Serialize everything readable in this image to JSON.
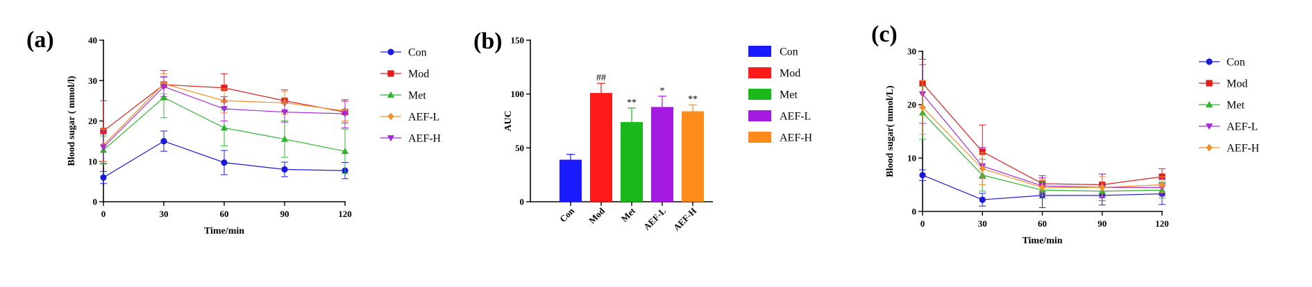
{
  "chart_data": [
    {
      "panel": "(a)",
      "type": "line",
      "xlabel": "Time/min",
      "ylabel": "Blood sugar ( mmol/l)",
      "x": [
        0,
        30,
        60,
        90,
        120
      ],
      "xticks": [
        "0",
        "30",
        "60",
        "90",
        "120"
      ],
      "ylim": [
        0,
        40
      ],
      "yticks": [
        "0",
        "10",
        "20",
        "30",
        "40"
      ],
      "grid": false,
      "legend_position": "right",
      "series": [
        {
          "name": "Con",
          "color": "#1a1adb",
          "marker": "circle",
          "values": [
            6.0,
            15.0,
            9.7,
            8.0,
            7.7
          ],
          "errors": [
            1.5,
            2.5,
            3.0,
            1.8,
            2.0
          ]
        },
        {
          "name": "Mod",
          "color": "#e01c1c",
          "marker": "square",
          "values": [
            17.5,
            29.0,
            28.2,
            25.0,
            22.2
          ],
          "errors": [
            7.5,
            3.5,
            3.5,
            2.7,
            2.7
          ]
        },
        {
          "name": "Met",
          "color": "#2db52d",
          "marker": "triangle-up",
          "values": [
            12.8,
            25.8,
            18.3,
            15.5,
            12.5
          ],
          "errors": [
            3.5,
            5.0,
            4.5,
            4.5,
            5.5
          ]
        },
        {
          "name": "AEF-L",
          "color": "#f0922b",
          "marker": "diamond",
          "values": [
            14.0,
            29.2,
            25.0,
            24.5,
            22.5
          ],
          "errors": [
            4.0,
            2.5,
            3.0,
            2.8,
            2.5
          ]
        },
        {
          "name": "AEF-H",
          "color": "#a52bd6",
          "marker": "triangle-down",
          "values": [
            13.5,
            28.5,
            23.0,
            22.2,
            21.8
          ],
          "errors": [
            4.0,
            2.5,
            3.0,
            2.5,
            3.5
          ]
        }
      ]
    },
    {
      "panel": "(b)",
      "type": "bar",
      "ylabel": "AUC",
      "categories": [
        "Con",
        "Mod",
        "Met",
        "AEF-L",
        "AEF-H"
      ],
      "values": [
        39,
        101,
        74,
        88,
        84
      ],
      "errors": [
        5,
        9,
        13,
        10,
        6
      ],
      "significance": [
        "",
        "##",
        "**",
        "*",
        "**"
      ],
      "colors": [
        "#1a1aff",
        "#ff1a1a",
        "#1ab81a",
        "#a51ae0",
        "#ff8c1a"
      ],
      "ylim": [
        0,
        150
      ],
      "yticks": [
        "0",
        "50",
        "100",
        "150"
      ],
      "grid": false,
      "legend_position": "right",
      "legend": [
        "Con",
        "Mod",
        "Met",
        "AEF-L",
        "AEF-H"
      ]
    },
    {
      "panel": "(c)",
      "type": "line",
      "xlabel": "Time/min",
      "ylabel": "Blood sugar( mmol/L)",
      "x": [
        0,
        30,
        60,
        90,
        120
      ],
      "xticks": [
        "0",
        "30",
        "60",
        "90",
        "120"
      ],
      "ylim": [
        0,
        30
      ],
      "yticks": [
        "0",
        "10",
        "20",
        "30"
      ],
      "grid": false,
      "legend_position": "right",
      "series": [
        {
          "name": "Con",
          "color": "#1a1adb",
          "marker": "circle",
          "values": [
            6.8,
            2.2,
            3.0,
            3.0,
            3.3
          ],
          "errors": [
            1.0,
            1.2,
            2.3,
            1.8,
            2.0
          ]
        },
        {
          "name": "Mod",
          "color": "#e01c1c",
          "marker": "square",
          "values": [
            24.0,
            11.2,
            5.2,
            5.0,
            6.5
          ],
          "errors": [
            4.5,
            5.0,
            1.5,
            2.0,
            1.5
          ]
        },
        {
          "name": "Met",
          "color": "#2db52d",
          "marker": "triangle-up",
          "values": [
            18.5,
            6.8,
            4.0,
            3.8,
            4.0
          ],
          "errors": [
            5.0,
            3.0,
            1.5,
            1.0,
            1.5
          ]
        },
        {
          "name": "AEF-L",
          "color": "#a52bd6",
          "marker": "triangle-down",
          "values": [
            22.0,
            8.5,
            4.8,
            4.5,
            4.5
          ],
          "errors": [
            5.5,
            3.5,
            1.5,
            2.5,
            1.5
          ]
        },
        {
          "name": "AEF-H",
          "color": "#f0922b",
          "marker": "diamond",
          "values": [
            19.5,
            8.0,
            4.5,
            4.5,
            5.0
          ],
          "errors": [
            5.0,
            3.0,
            1.5,
            2.0,
            1.5
          ]
        }
      ]
    }
  ]
}
